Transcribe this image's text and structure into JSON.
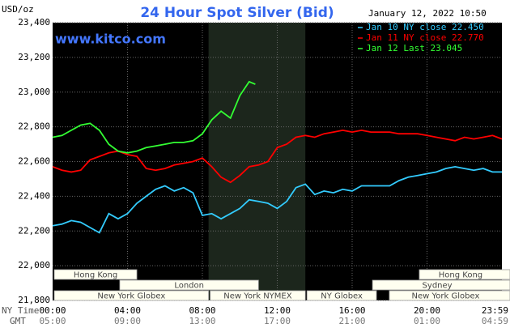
{
  "chart_data": {
    "type": "line",
    "title": "24 Hour Spot Silver (Bid)",
    "y_unit": "USD/oz",
    "watermark": "www.kitco.com",
    "timestamp": "January 12, 2022 10:50",
    "x_axis_label": "NY Time",
    "x_axis_label_2": "GMT",
    "xlim": [
      0,
      24
    ],
    "xticks": [
      {
        "value": 0,
        "label": "00:00"
      },
      {
        "value": 4,
        "label": "04:00"
      },
      {
        "value": 8,
        "label": "08:00"
      },
      {
        "value": 12,
        "label": "12:00"
      },
      {
        "value": 16,
        "label": "16:00"
      },
      {
        "value": 20,
        "label": "20:00"
      },
      {
        "value": 23.983,
        "label": "23:59"
      }
    ],
    "xticks_gmt": [
      "05:00",
      "09:00",
      "13:00",
      "17:00",
      "21:00",
      "01:00",
      "04:59"
    ],
    "ylim": [
      21.8,
      23.4
    ],
    "yticks": [
      {
        "value": 21.8,
        "label": "21,800"
      },
      {
        "value": 22.0,
        "label": "22,000"
      },
      {
        "value": 22.2,
        "label": "22,200"
      },
      {
        "value": 22.4,
        "label": "22,400"
      },
      {
        "value": 22.6,
        "label": "22,600"
      },
      {
        "value": 22.8,
        "label": "22,800"
      },
      {
        "value": 23.0,
        "label": "23,000"
      },
      {
        "value": 23.2,
        "label": "23,200"
      },
      {
        "value": 23.4,
        "label": "23,400"
      }
    ],
    "grid": true,
    "sessions": [
      [
        {
          "label": "Hong Kong",
          "start": 0,
          "end": 4.5
        },
        {
          "label": "Hong Kong",
          "start": 19.5,
          "end": 24
        }
      ],
      [
        {
          "label": "London",
          "start": 3.5,
          "end": 11
        },
        {
          "label": "Sydney",
          "start": 17,
          "end": 24
        }
      ],
      [
        {
          "label": "New York Globex",
          "start": 0,
          "end": 8.33
        },
        {
          "label": "New York NYMEX",
          "start": 8.33,
          "end": 13.5
        },
        {
          "label": "NY Globex",
          "start": 13.5,
          "end": 17.3
        },
        {
          "label": "New York Globex",
          "start": 17.9,
          "end": 24
        }
      ]
    ],
    "series": [
      {
        "name": "Jan 10 NY close 22.450",
        "color": "#33ccff",
        "x": [
          0,
          0.5,
          1,
          1.5,
          2,
          2.5,
          3,
          3.5,
          4,
          4.5,
          5,
          5.5,
          6,
          6.5,
          7,
          7.5,
          8,
          8.5,
          9,
          9.5,
          10,
          10.5,
          11,
          11.5,
          12,
          12.5,
          13,
          13.5,
          14,
          14.5,
          15,
          15.5,
          16,
          16.5,
          17,
          17.5,
          18,
          18.5,
          19,
          19.5,
          20,
          20.5,
          21,
          21.5,
          22,
          22.5,
          23,
          23.5,
          24
        ],
        "values": [
          22.23,
          22.24,
          22.26,
          22.25,
          22.22,
          22.19,
          22.3,
          22.27,
          22.3,
          22.36,
          22.4,
          22.44,
          22.46,
          22.43,
          22.45,
          22.42,
          22.29,
          22.3,
          22.27,
          22.3,
          22.33,
          22.38,
          22.37,
          22.36,
          22.33,
          22.37,
          22.45,
          22.47,
          22.41,
          22.43,
          22.42,
          22.44,
          22.43,
          22.46,
          22.46,
          22.46,
          22.46,
          22.49,
          22.51,
          22.52,
          22.53,
          22.54,
          22.56,
          22.57,
          22.56,
          22.55,
          22.56,
          22.54,
          22.54
        ]
      },
      {
        "name": "Jan 11 NY close 22.770",
        "color": "#ff0000",
        "x": [
          0,
          0.5,
          1,
          1.5,
          2,
          2.5,
          3,
          3.5,
          4,
          4.5,
          5,
          5.5,
          6,
          6.5,
          7,
          7.5,
          8,
          8.5,
          9,
          9.5,
          10,
          10.5,
          11,
          11.5,
          12,
          12.5,
          13,
          13.5,
          14,
          14.5,
          15,
          15.5,
          16,
          16.5,
          17,
          17.5,
          18,
          18.5,
          19,
          19.5,
          20,
          20.5,
          21,
          21.5,
          22,
          22.5,
          23,
          23.5,
          24
        ],
        "values": [
          22.57,
          22.55,
          22.54,
          22.55,
          22.61,
          22.63,
          22.65,
          22.66,
          22.64,
          22.63,
          22.56,
          22.55,
          22.56,
          22.58,
          22.59,
          22.6,
          22.62,
          22.57,
          22.51,
          22.48,
          22.52,
          22.57,
          22.58,
          22.6,
          22.68,
          22.7,
          22.74,
          22.75,
          22.74,
          22.76,
          22.77,
          22.78,
          22.77,
          22.78,
          22.77,
          22.77,
          22.77,
          22.76,
          22.76,
          22.76,
          22.75,
          22.74,
          22.73,
          22.72,
          22.74,
          22.73,
          22.74,
          22.75,
          22.73
        ]
      },
      {
        "name": "Jan 12 Last 23.045",
        "color": "#33ff33",
        "x": [
          0,
          0.5,
          1,
          1.5,
          2,
          2.5,
          3,
          3.5,
          4,
          4.5,
          5,
          5.5,
          6,
          6.5,
          7,
          7.5,
          8,
          8.5,
          9,
          9.5,
          10,
          10.5,
          10.83
        ],
        "values": [
          22.74,
          22.75,
          22.78,
          22.81,
          22.82,
          22.78,
          22.7,
          22.66,
          22.65,
          22.66,
          22.68,
          22.69,
          22.7,
          22.71,
          22.71,
          22.72,
          22.76,
          22.84,
          22.89,
          22.85,
          22.98,
          23.06,
          23.045
        ]
      }
    ]
  }
}
